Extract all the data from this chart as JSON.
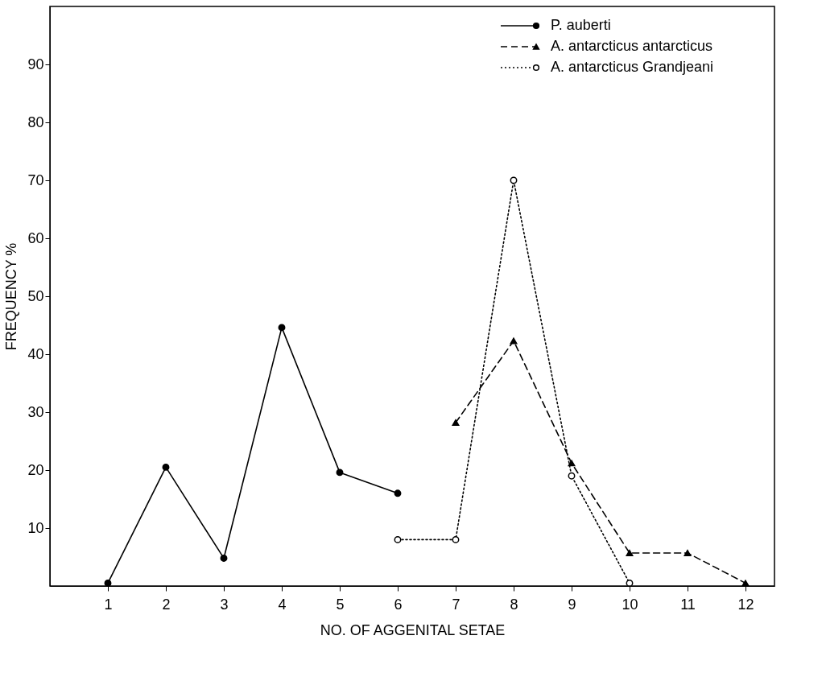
{
  "chart_data": {
    "type": "line",
    "xlabel": "NO. OF AGGENITAL SETAE",
    "ylabel": "FREQUENCY %",
    "xlim": [
      0,
      12.5
    ],
    "xticks": [
      1,
      2,
      3,
      4,
      5,
      6,
      7,
      8,
      9,
      10,
      11,
      12
    ],
    "ylim": [
      0,
      100
    ],
    "yticks": [
      10,
      20,
      30,
      40,
      50,
      60,
      70,
      80,
      90
    ],
    "grid": false,
    "legend": "top right",
    "series": [
      {
        "name": "P. auberti",
        "color": "#000000",
        "marker": "circle",
        "line_style": "solid",
        "x": [
          1,
          2,
          3,
          4,
          5,
          6
        ],
        "values": [
          0.5,
          20.5,
          4.8,
          44.6,
          19.6,
          16
        ]
      },
      {
        "name": "A. antarcticus antarcticus",
        "color": "#000000",
        "marker": "triangle",
        "line_style": "dashed",
        "x": [
          7,
          8,
          9,
          10,
          11,
          12
        ],
        "values": [
          28.2,
          42.3,
          21.2,
          5.7,
          5.7,
          0.5
        ]
      },
      {
        "name": "A. antarcticus Grandjeani",
        "color": "#000000",
        "marker": "open circle",
        "line_style": "dotted",
        "x": [
          6,
          7,
          8,
          9,
          10
        ],
        "values": [
          8,
          8,
          70,
          19,
          0.5
        ]
      }
    ]
  }
}
